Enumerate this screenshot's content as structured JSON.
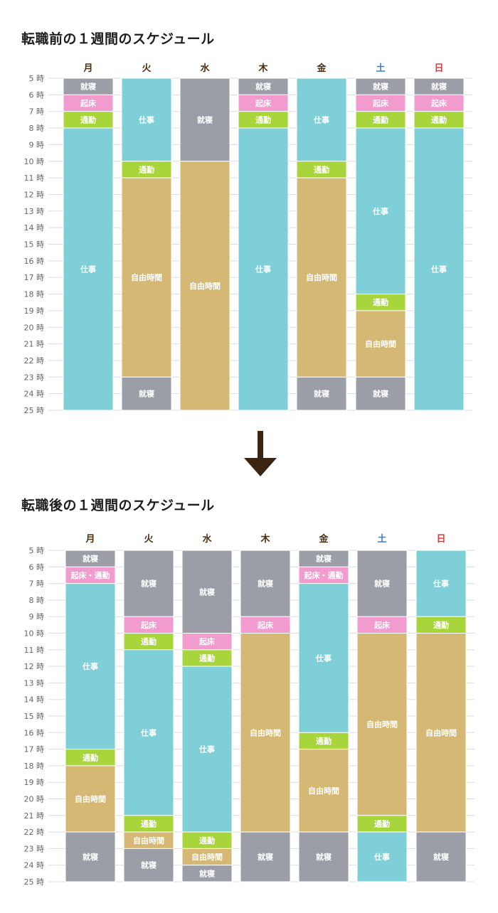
{
  "colors": {
    "就寝": "#9b9ea6",
    "起床": "#f29bcf",
    "通勤": "#a8d43c",
    "起床・通勤": "#f29bcf",
    "仕事": "#7ecfd8",
    "自由時間": "#d5b874",
    "day_default": "#4a2e12",
    "saturday": "#3a7fd4",
    "sunday": "#e23a3a",
    "hour_label": "#666666",
    "grid": "#dddddd"
  },
  "icons": {
    "arrow": "arrow-down-icon"
  },
  "chart_data": [
    {
      "type": "bar",
      "title": "転職前の１週間のスケジュール",
      "categories": [
        "月",
        "火",
        "水",
        "木",
        "金",
        "土",
        "日"
      ],
      "hour_axis": {
        "start": 5,
        "end": 25,
        "suffix": "時"
      },
      "grid": true,
      "days": [
        {
          "label": "月",
          "blocks": [
            {
              "label": "就寝",
              "start": 5,
              "end": 6
            },
            {
              "label": "起床",
              "start": 6,
              "end": 7
            },
            {
              "label": "通勤",
              "start": 7,
              "end": 8
            },
            {
              "label": "仕事",
              "start": 8,
              "end": 25
            }
          ]
        },
        {
          "label": "火",
          "blocks": [
            {
              "label": "仕事",
              "start": 5,
              "end": 10
            },
            {
              "label": "通勤",
              "start": 10,
              "end": 11
            },
            {
              "label": "自由時間",
              "start": 11,
              "end": 23
            },
            {
              "label": "就寝",
              "start": 23,
              "end": 25
            }
          ]
        },
        {
          "label": "水",
          "blocks": [
            {
              "label": "就寝",
              "start": 5,
              "end": 10
            },
            {
              "label": "自由時間",
              "start": 10,
              "end": 25
            }
          ]
        },
        {
          "label": "木",
          "blocks": [
            {
              "label": "就寝",
              "start": 5,
              "end": 6
            },
            {
              "label": "起床",
              "start": 6,
              "end": 7
            },
            {
              "label": "通勤",
              "start": 7,
              "end": 8
            },
            {
              "label": "仕事",
              "start": 8,
              "end": 25
            }
          ]
        },
        {
          "label": "金",
          "blocks": [
            {
              "label": "仕事",
              "start": 5,
              "end": 10
            },
            {
              "label": "通勤",
              "start": 10,
              "end": 11
            },
            {
              "label": "自由時間",
              "start": 11,
              "end": 23
            },
            {
              "label": "就寝",
              "start": 23,
              "end": 25
            }
          ]
        },
        {
          "label": "土",
          "blocks": [
            {
              "label": "就寝",
              "start": 5,
              "end": 6
            },
            {
              "label": "起床",
              "start": 6,
              "end": 7
            },
            {
              "label": "通勤",
              "start": 7,
              "end": 8
            },
            {
              "label": "仕事",
              "start": 8,
              "end": 18
            },
            {
              "label": "通勤",
              "start": 18,
              "end": 19
            },
            {
              "label": "自由時間",
              "start": 19,
              "end": 23
            },
            {
              "label": "就寝",
              "start": 23,
              "end": 25
            }
          ]
        },
        {
          "label": "日",
          "blocks": [
            {
              "label": "就寝",
              "start": 5,
              "end": 6
            },
            {
              "label": "起床",
              "start": 6,
              "end": 7
            },
            {
              "label": "通勤",
              "start": 7,
              "end": 8
            },
            {
              "label": "仕事",
              "start": 8,
              "end": 25
            }
          ]
        }
      ]
    },
    {
      "type": "bar",
      "title": "転職後の１週間のスケジュール",
      "categories": [
        "月",
        "火",
        "水",
        "木",
        "金",
        "土",
        "日"
      ],
      "hour_axis": {
        "start": 5,
        "end": 25,
        "suffix": "時"
      },
      "grid": true,
      "days": [
        {
          "label": "月",
          "blocks": [
            {
              "label": "就寝",
              "start": 5,
              "end": 6
            },
            {
              "label": "起床・通勤",
              "start": 6,
              "end": 7
            },
            {
              "label": "仕事",
              "start": 7,
              "end": 17
            },
            {
              "label": "通勤",
              "start": 17,
              "end": 18
            },
            {
              "label": "自由時間",
              "start": 18,
              "end": 22
            },
            {
              "label": "就寝",
              "start": 22,
              "end": 25
            }
          ]
        },
        {
          "label": "火",
          "blocks": [
            {
              "label": "就寝",
              "start": 5,
              "end": 9
            },
            {
              "label": "起床",
              "start": 9,
              "end": 10
            },
            {
              "label": "通勤",
              "start": 10,
              "end": 11
            },
            {
              "label": "仕事",
              "start": 11,
              "end": 21
            },
            {
              "label": "通勤",
              "start": 21,
              "end": 22
            },
            {
              "label": "自由時間",
              "start": 22,
              "end": 23
            },
            {
              "label": "就寝",
              "start": 23,
              "end": 25
            }
          ]
        },
        {
          "label": "水",
          "blocks": [
            {
              "label": "就寝",
              "start": 5,
              "end": 10
            },
            {
              "label": "起床",
              "start": 10,
              "end": 11
            },
            {
              "label": "通勤",
              "start": 11,
              "end": 12
            },
            {
              "label": "仕事",
              "start": 12,
              "end": 22
            },
            {
              "label": "通勤",
              "start": 22,
              "end": 23
            },
            {
              "label": "自由時間",
              "start": 23,
              "end": 24
            },
            {
              "label": "就寝",
              "start": 24,
              "end": 25
            }
          ]
        },
        {
          "label": "木",
          "blocks": [
            {
              "label": "就寝",
              "start": 5,
              "end": 9
            },
            {
              "label": "起床",
              "start": 9,
              "end": 10
            },
            {
              "label": "自由時間",
              "start": 10,
              "end": 22
            },
            {
              "label": "就寝",
              "start": 22,
              "end": 25
            }
          ]
        },
        {
          "label": "金",
          "blocks": [
            {
              "label": "就寝",
              "start": 5,
              "end": 6
            },
            {
              "label": "起床・通勤",
              "start": 6,
              "end": 7
            },
            {
              "label": "仕事",
              "start": 7,
              "end": 16
            },
            {
              "label": "通勤",
              "start": 16,
              "end": 17
            },
            {
              "label": "自由時間",
              "start": 17,
              "end": 22
            },
            {
              "label": "就寝",
              "start": 22,
              "end": 25
            }
          ]
        },
        {
          "label": "土",
          "blocks": [
            {
              "label": "就寝",
              "start": 5,
              "end": 9
            },
            {
              "label": "起床",
              "start": 9,
              "end": 10
            },
            {
              "label": "自由時間",
              "start": 10,
              "end": 21
            },
            {
              "label": "通勤",
              "start": 21,
              "end": 22
            },
            {
              "label": "仕事",
              "start": 22,
              "end": 25
            }
          ]
        },
        {
          "label": "日",
          "blocks": [
            {
              "label": "仕事",
              "start": 5,
              "end": 9
            },
            {
              "label": "通勤",
              "start": 9,
              "end": 10
            },
            {
              "label": "自由時間",
              "start": 10,
              "end": 22
            },
            {
              "label": "就寝",
              "start": 22,
              "end": 25
            }
          ]
        }
      ]
    }
  ]
}
